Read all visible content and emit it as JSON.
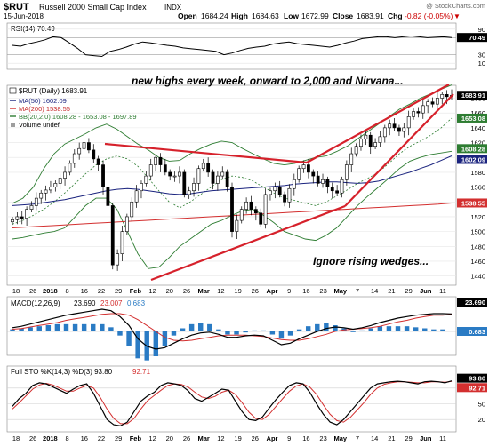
{
  "header": {
    "symbol": "$RUT",
    "name": "Russell 2000 Small Cap Index",
    "exchange": "INDX",
    "date": "15-Jun-2018",
    "open_label": "Open",
    "open": "1684.24",
    "high_label": "High",
    "high": "1684.63",
    "low_label": "Low",
    "low": "1672.99",
    "close_label": "Close",
    "close": "1683.91",
    "chg_label": "Chg",
    "chg": "-0.82 (-0.05%)",
    "chg_arrow": "▼",
    "watermark": "@ StockCharts.com"
  },
  "colors": {
    "price_up": "#ffffff",
    "price_down": "#000000",
    "ma50": "#1a237e",
    "ma200": "#d32f2f",
    "bb": "#2e7d32",
    "annotation": "#d6212b",
    "macd_hist": "#2a7bc4",
    "rsi_zone": "#8c8c8c"
  },
  "chart_data": [
    {
      "type": "line",
      "panel": "rsi",
      "legend": "RSI(14) 70.49",
      "value": 70.49,
      "ylim": [
        0,
        100
      ],
      "ticks": [
        10,
        30,
        70,
        90
      ],
      "series": [
        {
          "name": "RSI(14)",
          "values": [
            52,
            50,
            56,
            60,
            65,
            72,
            70,
            58,
            45,
            30,
            28,
            26,
            38,
            42,
            48,
            55,
            60,
            58,
            55,
            52,
            50,
            46,
            44,
            42,
            40,
            38,
            30,
            34,
            40,
            45,
            48,
            50,
            55,
            58,
            60,
            56,
            54,
            52,
            50,
            48,
            52,
            58,
            62,
            68,
            70,
            72,
            72,
            70,
            72,
            74,
            72,
            70,
            71,
            72,
            70.49
          ]
        }
      ]
    },
    {
      "type": "candlestick",
      "panel": "price",
      "legend": {
        "symbol": "$RUT (Daily) 1683.91",
        "ma50": "MA(50) 1602.09",
        "ma200": "MA(200) 1538.55",
        "bb": "BB(20,2.0) 1608.28 - 1653.08 - 1697.89",
        "volume": "Volume undef"
      },
      "ylim": [
        1430,
        1695
      ],
      "yticks": [
        1440,
        1460,
        1480,
        1500,
        1520,
        1540,
        1560,
        1580,
        1600,
        1620,
        1640,
        1660,
        1680
      ],
      "last_value_labels": [
        {
          "text": "1683.91",
          "value": 1683.91
        },
        {
          "text": "1653.08",
          "value": 1653.08
        },
        {
          "text": "1608.28",
          "value": 1608.28
        },
        {
          "text": "1602.09",
          "value": 1602.09
        },
        {
          "text": "1538.55",
          "value": 1538.55
        }
      ],
      "close": [
        1516,
        1520,
        1518,
        1530,
        1535,
        1545,
        1552,
        1556,
        1560,
        1565,
        1572,
        1580,
        1592,
        1605,
        1612,
        1620,
        1610,
        1598,
        1590,
        1560,
        1535,
        1455,
        1470,
        1500,
        1520,
        1540,
        1555,
        1565,
        1575,
        1590,
        1600,
        1590,
        1580,
        1575,
        1575,
        1580,
        1550,
        1555,
        1565,
        1585,
        1592,
        1580,
        1565,
        1575,
        1580,
        1560,
        1500,
        1515,
        1530,
        1540,
        1530,
        1525,
        1510,
        1550,
        1555,
        1560,
        1550,
        1540,
        1558,
        1570,
        1585,
        1590,
        1580,
        1575,
        1565,
        1570,
        1560,
        1555,
        1552,
        1570,
        1590,
        1605,
        1615,
        1625,
        1630,
        1615,
        1620,
        1628,
        1640,
        1645,
        1640,
        1635,
        1640,
        1655,
        1662,
        1660,
        1670,
        1675,
        1672,
        1680,
        1685,
        1682,
        1683.91
      ],
      "ma50": [
        1535,
        1536,
        1537,
        1539,
        1541,
        1543,
        1546,
        1549,
        1552,
        1555,
        1557,
        1558,
        1557,
        1555,
        1553,
        1551,
        1550,
        1551,
        1553,
        1555,
        1556,
        1557,
        1558,
        1559,
        1560,
        1561,
        1562,
        1564,
        1565,
        1566,
        1567,
        1567,
        1566,
        1565,
        1566,
        1568,
        1572,
        1576,
        1580,
        1585,
        1590,
        1596,
        1602.09
      ],
      "ma200": [
        1505,
        1506,
        1507,
        1508,
        1509,
        1510,
        1511,
        1512,
        1513,
        1514,
        1515,
        1516,
        1517,
        1518,
        1519,
        1520,
        1521,
        1522,
        1523,
        1524,
        1525,
        1526,
        1527,
        1528,
        1529,
        1530,
        1531,
        1532,
        1533,
        1534,
        1535,
        1536,
        1537,
        1538.55
      ],
      "bb_mid": [
        1510,
        1515,
        1522,
        1530,
        1540,
        1552,
        1565,
        1578,
        1590,
        1598,
        1602,
        1598,
        1588,
        1572,
        1555,
        1540,
        1532,
        1540,
        1550,
        1560,
        1570,
        1575,
        1573,
        1568,
        1560,
        1552,
        1545,
        1542,
        1538,
        1535,
        1540,
        1548,
        1556,
        1565,
        1572,
        1580,
        1592,
        1605,
        1615,
        1622,
        1630,
        1640,
        1653.08
      ],
      "bb_upper": [
        1538,
        1545,
        1560,
        1585,
        1605,
        1618,
        1625,
        1632,
        1640,
        1645,
        1638,
        1628,
        1618,
        1610,
        1600,
        1595,
        1596,
        1605,
        1612,
        1618,
        1622,
        1620,
        1612,
        1605,
        1598,
        1592,
        1590,
        1592,
        1596,
        1600,
        1602,
        1608,
        1615,
        1625,
        1635,
        1645,
        1655,
        1665,
        1672,
        1680,
        1686,
        1692,
        1697.89
      ],
      "bb_lower": [
        1490,
        1492,
        1495,
        1498,
        1500,
        1505,
        1520,
        1535,
        1545,
        1545,
        1530,
        1500,
        1470,
        1450,
        1452,
        1465,
        1480,
        1490,
        1500,
        1510,
        1515,
        1522,
        1528,
        1530,
        1522,
        1512,
        1500,
        1495,
        1490,
        1488,
        1495,
        1505,
        1520,
        1535,
        1548,
        1560,
        1572,
        1585,
        1595,
        1600,
        1604,
        1606,
        1608.28
      ]
    },
    {
      "type": "bar",
      "panel": "macd",
      "legend_prefix": "MACD(12,26,9)",
      "macd": "23.690",
      "signal": "23.007",
      "histogram": "0.683",
      "ylim": [
        -30,
        30
      ],
      "macd_line": [
        5,
        7,
        10,
        13,
        16,
        19,
        22,
        24,
        26,
        28,
        30,
        28,
        20,
        8,
        -10,
        -20,
        -24,
        -22,
        -16,
        -10,
        -5,
        -2,
        -1,
        -4,
        -8,
        -8,
        -6,
        -5,
        -6,
        -12,
        -18,
        -16,
        -10,
        -5,
        0,
        4,
        6,
        5,
        3,
        5,
        8,
        12,
        15,
        18,
        20,
        22,
        23,
        24,
        24,
        23.69
      ],
      "signal_line": [
        3,
        4,
        6,
        8,
        10,
        12,
        15,
        17,
        19,
        21,
        23,
        24,
        24,
        22,
        16,
        8,
        0,
        -8,
        -12,
        -13,
        -12,
        -10,
        -8,
        -6,
        -5,
        -5,
        -5,
        -6,
        -7,
        -9,
        -11,
        -12,
        -12,
        -10,
        -7,
        -4,
        0,
        2,
        3,
        4,
        5,
        7,
        10,
        13,
        15,
        18,
        20,
        22,
        22,
        23.007
      ]
    },
    {
      "type": "line",
      "panel": "sto",
      "legend": "Full STO %K(14,3) %D(3) 93.80",
      "d_value": "92.71",
      "ylim": [
        0,
        100
      ],
      "yticks": [
        20,
        50,
        80
      ],
      "last_labels": [
        "93.80",
        "92.71"
      ],
      "k_values": [
        45,
        60,
        70,
        85,
        90,
        88,
        82,
        76,
        70,
        78,
        85,
        88,
        70,
        45,
        20,
        10,
        8,
        15,
        35,
        55,
        65,
        72,
        85,
        90,
        88,
        85,
        75,
        60,
        55,
        62,
        70,
        78,
        76,
        55,
        35,
        20,
        18,
        25,
        42,
        58,
        72,
        85,
        90,
        88,
        72,
        50,
        30,
        15,
        10,
        20,
        35,
        50,
        65,
        80,
        88,
        90,
        92,
        93,
        92,
        90,
        88,
        92,
        93,
        92,
        90,
        93.8
      ],
      "d_values": [
        40,
        52,
        65,
        78,
        86,
        89,
        86,
        80,
        74,
        74,
        80,
        85,
        80,
        62,
        40,
        22,
        12,
        12,
        22,
        40,
        56,
        66,
        76,
        85,
        88,
        87,
        82,
        72,
        63,
        60,
        64,
        72,
        76,
        68,
        52,
        34,
        22,
        20,
        30,
        45,
        60,
        74,
        84,
        88,
        82,
        68,
        48,
        30,
        18,
        15,
        24,
        38,
        52,
        68,
        80,
        87,
        90,
        92,
        92,
        91,
        90,
        90,
        92,
        92,
        91,
        92.71
      ]
    }
  ],
  "annotations": {
    "top_text": "new highs every week, onward to 2,000 and Nirvana...",
    "bottom_text": "Ignore rising wedges..."
  },
  "x_axis": {
    "labels": [
      "18",
      "26",
      "2018",
      "8",
      "16",
      "22",
      "29",
      "Feb",
      "12",
      "20",
      "26",
      "Mar",
      "12",
      "19",
      "26",
      "Apr",
      "9",
      "16",
      "23",
      "May",
      "7",
      "14",
      "21",
      "29",
      "Jun",
      "11"
    ]
  }
}
